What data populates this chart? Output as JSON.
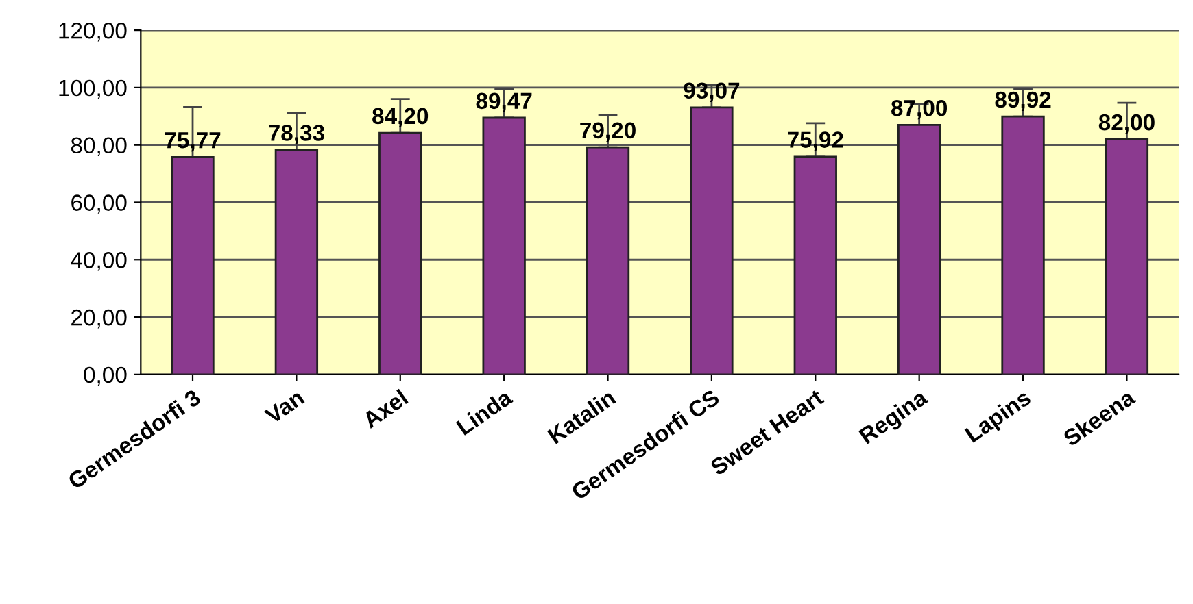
{
  "chart_data": {
    "type": "bar",
    "categories": [
      "Germesdorfi 3",
      "Van",
      "Axel",
      "Linda",
      "Katalin",
      "Germesdorfi CS",
      "Sweet Heart",
      "Regina",
      "Lapins",
      "Skeena"
    ],
    "values": [
      75.77,
      78.33,
      84.2,
      89.47,
      79.2,
      93.07,
      75.92,
      87.0,
      89.92,
      82.0
    ],
    "value_labels": [
      "75,77",
      "78,33",
      "84,20",
      "89,47",
      "79,20",
      "93,07",
      "75,92",
      "87,00",
      "89,92",
      "82,00"
    ],
    "errors": [
      [
        75.77,
        93.2
      ],
      [
        78.33,
        91.1
      ],
      [
        84.2,
        96.0
      ],
      [
        89.47,
        99.5
      ],
      [
        79.2,
        90.4
      ],
      [
        93.07,
        101
      ],
      [
        75.92,
        87.6
      ],
      [
        87.0,
        94.3
      ],
      [
        89.92,
        99.5
      ],
      [
        82.0,
        94.7
      ]
    ],
    "color": "#8b3a8f",
    "ylim": [
      0,
      120
    ],
    "yticks": [
      {
        "value": 0,
        "label": "0,00"
      },
      {
        "value": 20,
        "label": "20,00"
      },
      {
        "value": 40,
        "label": "40,00"
      },
      {
        "value": 60,
        "label": "60,00"
      },
      {
        "value": 80,
        "label": "80,00"
      },
      {
        "value": 100,
        "label": "100,00"
      },
      {
        "value": 120,
        "label": "120,00"
      }
    ],
    "grid": "y",
    "legend": false
  }
}
